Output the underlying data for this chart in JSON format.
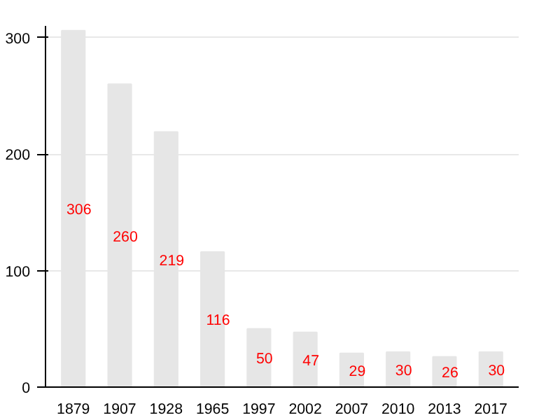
{
  "chart_data": {
    "type": "bar",
    "categories": [
      "1879",
      "1907",
      "1928",
      "1965",
      "1997",
      "2002",
      "2007",
      "2010",
      "2013",
      "2017"
    ],
    "values": [
      306,
      260,
      219,
      116,
      50,
      47,
      29,
      30,
      26,
      30
    ],
    "color": "#e6e6e6",
    "ylim": [
      0,
      310
    ],
    "yticks": [
      0,
      100,
      200,
      300
    ],
    "grid": "y",
    "data_labels": true
  }
}
